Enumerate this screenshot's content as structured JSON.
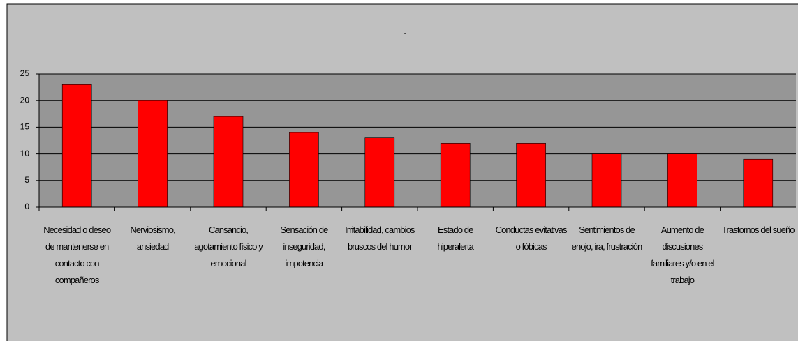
{
  "chart_data": {
    "type": "bar",
    "title": ".",
    "categories": [
      "Necesidad o deseo de mantenerse en contacto con compañeros",
      "Nerviosismo, ansiedad",
      "Cansancio, agotamiento físico y emocional",
      "Sensación de inseguridad, impotencia",
      "Irritabilidad, cambios bruscos del humor",
      "Estado de hiperalerta",
      "Conductas evitativas o fóbicas",
      "Sentimientos de enojo, ira, frustración",
      "Aumento de discusiones familiares y/o en el trabajo",
      "Trastornos del sueño"
    ],
    "values": [
      23,
      20,
      17,
      14,
      13,
      12,
      12,
      10,
      10,
      9
    ],
    "color": "#ff0000",
    "ylim": [
      0,
      25
    ],
    "yticks": [
      0,
      5,
      10,
      15,
      20,
      25
    ],
    "grid": true
  }
}
